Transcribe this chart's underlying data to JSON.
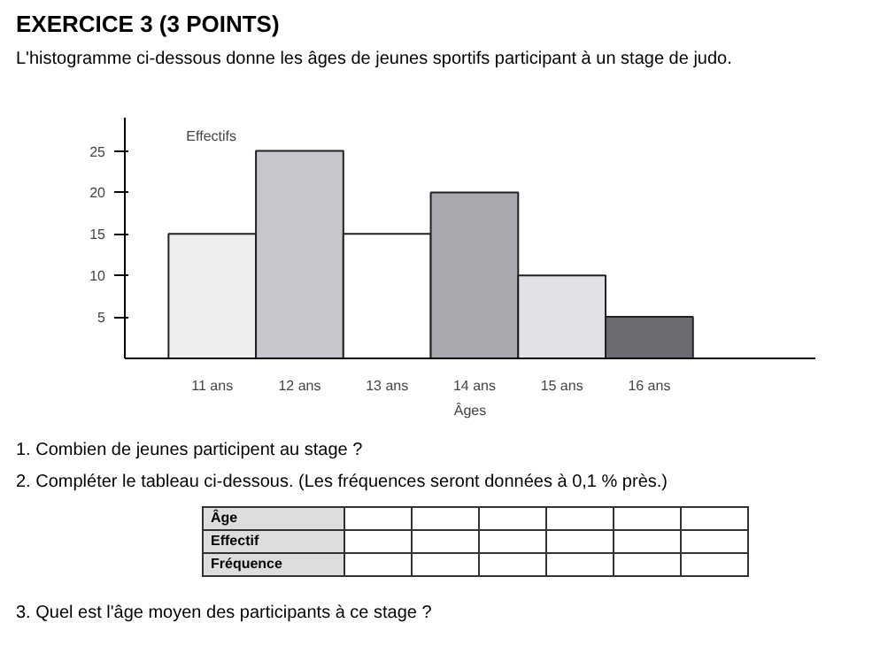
{
  "chart_data": {
    "type": "bar",
    "title": "EXERCICE 3 (3 POINTS)",
    "subtitle": "L'histogramme ci-dessous donne les âges de jeunes sportifs participant à un stage de judo.",
    "xlabel": "Âges",
    "ylabel": "Effectifs",
    "categories": [
      "11 ans",
      "12 ans",
      "13 ans",
      "14 ans",
      "15 ans",
      "16 ans"
    ],
    "values": [
      15,
      25,
      15,
      20,
      10,
      5
    ],
    "colors": [
      "#eeedef",
      "#c9c6cd",
      "#ffffff",
      "#aaa7af",
      "#e3e1e6",
      "#6d6a72"
    ],
    "ylim": [
      0,
      29
    ],
    "yticks": [
      5,
      10,
      15,
      20,
      25
    ],
    "grid": false,
    "annotations": [
      "1. Combien de jeunes participent au stage ?",
      "2. Compléter le tableau ci-dessous. (Les fréquences seront données à 0,1 % près.)",
      "Âge",
      "Effectif",
      "Fréquence",
      "3. Quel est l'âge moyen des participants à ce stage ?"
    ]
  }
}
